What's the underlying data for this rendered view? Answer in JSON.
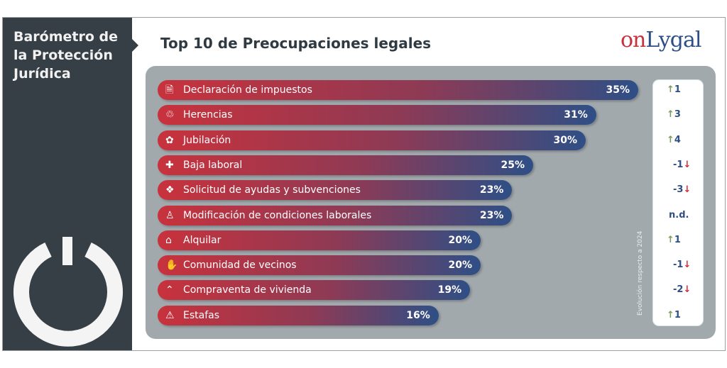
{
  "sidebar": {
    "title": "Barómetro de la Protección Jurídica",
    "logo_icon": "power-icon"
  },
  "header": {
    "title": "Top 10 de Preocupaciones legales",
    "logo_text_a": "on",
    "logo_text_b": "Lygal"
  },
  "colors": {
    "bar_start": "#c8323c",
    "bar_end": "#2e4f86",
    "up": "#7c9a5b",
    "down": "#d0313a",
    "sidebar": "#363f46",
    "panel": "#a2a9ad"
  },
  "chart_data": {
    "type": "bar",
    "orientation": "horizontal",
    "title": "Top 10 de Preocupaciones legales",
    "categories": [
      "Declaración de impuestos",
      "Herencias",
      "Jubilación",
      "Baja laboral",
      "Solicitud de ayudas y subvenciones",
      "Modificación de condiciones laborales",
      "Alquilar",
      "Comunidad de vecinos",
      "Compraventa de vivienda",
      "Estafas"
    ],
    "values": [
      35,
      31,
      30,
      25,
      23,
      23,
      20,
      20,
      19,
      16
    ],
    "value_labels": [
      "35%",
      "31%",
      "30%",
      "25%",
      "23%",
      "23%",
      "20%",
      "20%",
      "19%",
      "16%"
    ],
    "icons": [
      "tax-document-icon",
      "inheritance-icon",
      "retirement-icon",
      "sick-leave-icon",
      "grants-icon",
      "worker-icon",
      "rental-house-icon",
      "handshake-icon",
      "house-roof-icon",
      "alarm-icon"
    ],
    "evolution_label": "Evolución respecto a 2024",
    "evolution": [
      {
        "text": "1",
        "dir": "up"
      },
      {
        "text": "3",
        "dir": "up"
      },
      {
        "text": "4",
        "dir": "up"
      },
      {
        "text": "-1",
        "dir": "down"
      },
      {
        "text": "-3",
        "dir": "down"
      },
      {
        "text": "n.d.",
        "dir": "none"
      },
      {
        "text": "1",
        "dir": "up"
      },
      {
        "text": "-1",
        "dir": "down"
      },
      {
        "text": "-2",
        "dir": "down"
      },
      {
        "text": "1",
        "dir": "up"
      }
    ]
  }
}
